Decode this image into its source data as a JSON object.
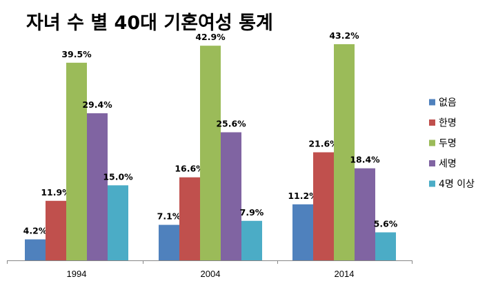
{
  "chart_data": {
    "type": "bar",
    "title": "자녀 수 별 40대 기혼여성 통계",
    "categories": [
      "1994",
      "2004",
      "2014"
    ],
    "series": [
      {
        "name": "없음",
        "values": [
          4.2,
          7.1,
          11.2
        ],
        "labels": [
          "4.2%",
          "7.1%",
          "11.2%"
        ],
        "color": "#4F81BD"
      },
      {
        "name": "한명",
        "values": [
          11.9,
          16.6,
          21.6
        ],
        "labels": [
          "11.9%",
          "16.6%",
          "21.6%"
        ],
        "color": "#C0504D"
      },
      {
        "name": "두명",
        "values": [
          39.5,
          42.9,
          43.2
        ],
        "labels": [
          "39.5%",
          "42.9%",
          "43.2%"
        ],
        "color": "#9BBB59"
      },
      {
        "name": "세명",
        "values": [
          29.4,
          25.6,
          18.4
        ],
        "labels": [
          "29.4%",
          "25.6%",
          "18.4%"
        ],
        "color": "#8064A2"
      },
      {
        "name": "4명 이상",
        "values": [
          15.0,
          7.9,
          5.6
        ],
        "labels": [
          "15.0%",
          "7.9%",
          "5.6%"
        ],
        "color": "#4BACC6"
      }
    ],
    "ylim": [
      0,
      43.2
    ],
    "grid": false,
    "legend_position": "right"
  }
}
